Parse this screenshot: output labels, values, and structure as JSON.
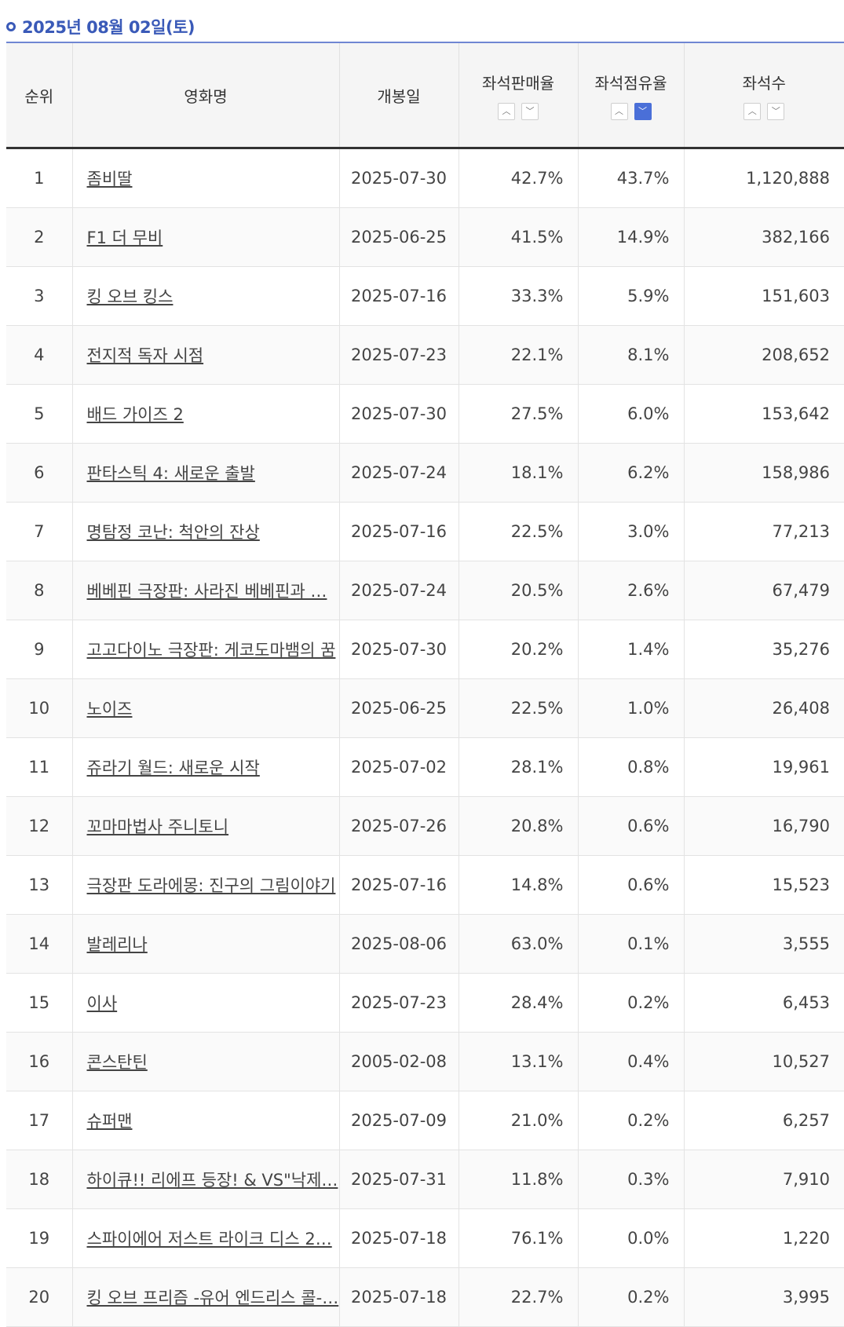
{
  "header": {
    "date": "2025년 08월 02일(토)"
  },
  "table": {
    "columns": {
      "rank": "순위",
      "title": "영화명",
      "release": "개봉일",
      "sales_rate": "좌석판매율",
      "share_rate": "좌석점유율",
      "seats": "좌석수"
    },
    "sort_icons": {
      "up": "chevron-up-icon",
      "down": "chevron-down-icon",
      "active": "share_rate.down"
    },
    "rows": [
      {
        "rank": "1",
        "title": "좀비딸",
        "release": "2025-07-30",
        "sales": "42.7%",
        "share": "43.7%",
        "seats": "1,120,888"
      },
      {
        "rank": "2",
        "title": "F1 더 무비",
        "release": "2025-06-25",
        "sales": "41.5%",
        "share": "14.9%",
        "seats": "382,166"
      },
      {
        "rank": "3",
        "title": "킹 오브 킹스",
        "release": "2025-07-16",
        "sales": "33.3%",
        "share": "5.9%",
        "seats": "151,603"
      },
      {
        "rank": "4",
        "title": "전지적 독자 시점",
        "release": "2025-07-23",
        "sales": "22.1%",
        "share": "8.1%",
        "seats": "208,652"
      },
      {
        "rank": "5",
        "title": "배드 가이즈 2",
        "release": "2025-07-30",
        "sales": "27.5%",
        "share": "6.0%",
        "seats": "153,642"
      },
      {
        "rank": "6",
        "title": "판타스틱 4: 새로운 출발",
        "release": "2025-07-24",
        "sales": "18.1%",
        "share": "6.2%",
        "seats": "158,986"
      },
      {
        "rank": "7",
        "title": "명탐정 코난: 척안의 잔상",
        "release": "2025-07-16",
        "sales": "22.5%",
        "share": "3.0%",
        "seats": "77,213"
      },
      {
        "rank": "8",
        "title": "베베핀 극장판: 사라진 베베핀과 …",
        "release": "2025-07-24",
        "sales": "20.5%",
        "share": "2.6%",
        "seats": "67,479"
      },
      {
        "rank": "9",
        "title": "고고다이노 극장판: 게코도마뱀의 꿈",
        "release": "2025-07-30",
        "sales": "20.2%",
        "share": "1.4%",
        "seats": "35,276"
      },
      {
        "rank": "10",
        "title": "노이즈",
        "release": "2025-06-25",
        "sales": "22.5%",
        "share": "1.0%",
        "seats": "26,408"
      },
      {
        "rank": "11",
        "title": "쥬라기 월드: 새로운 시작",
        "release": "2025-07-02",
        "sales": "28.1%",
        "share": "0.8%",
        "seats": "19,961"
      },
      {
        "rank": "12",
        "title": "꼬마마법사 주니토니",
        "release": "2025-07-26",
        "sales": "20.8%",
        "share": "0.6%",
        "seats": "16,790"
      },
      {
        "rank": "13",
        "title": "극장판 도라에몽: 진구의 그림이야기",
        "release": "2025-07-16",
        "sales": "14.8%",
        "share": "0.6%",
        "seats": "15,523"
      },
      {
        "rank": "14",
        "title": "발레리나",
        "release": "2025-08-06",
        "sales": "63.0%",
        "share": "0.1%",
        "seats": "3,555"
      },
      {
        "rank": "15",
        "title": "이사",
        "release": "2025-07-23",
        "sales": "28.4%",
        "share": "0.2%",
        "seats": "6,453"
      },
      {
        "rank": "16",
        "title": "콘스탄틴",
        "release": "2005-02-08",
        "sales": "13.1%",
        "share": "0.4%",
        "seats": "10,527"
      },
      {
        "rank": "17",
        "title": "슈퍼맨",
        "release": "2025-07-09",
        "sales": "21.0%",
        "share": "0.2%",
        "seats": "6,257"
      },
      {
        "rank": "18",
        "title": "하이큐!! 리에프 등장! & VS\"낙제…",
        "release": "2025-07-31",
        "sales": "11.8%",
        "share": "0.3%",
        "seats": "7,910"
      },
      {
        "rank": "19",
        "title": "스파이에어 저스트 라이크 디스 2…",
        "release": "2025-07-18",
        "sales": "76.1%",
        "share": "0.0%",
        "seats": "1,220"
      },
      {
        "rank": "20",
        "title": "킹 오브 프리즘 -유어 엔드리스 콜-…",
        "release": "2025-07-18",
        "sales": "22.7%",
        "share": "0.2%",
        "seats": "3,995"
      }
    ]
  },
  "colors": {
    "accent": "#3a5ab8",
    "active_sort": "#4a6fd8"
  }
}
